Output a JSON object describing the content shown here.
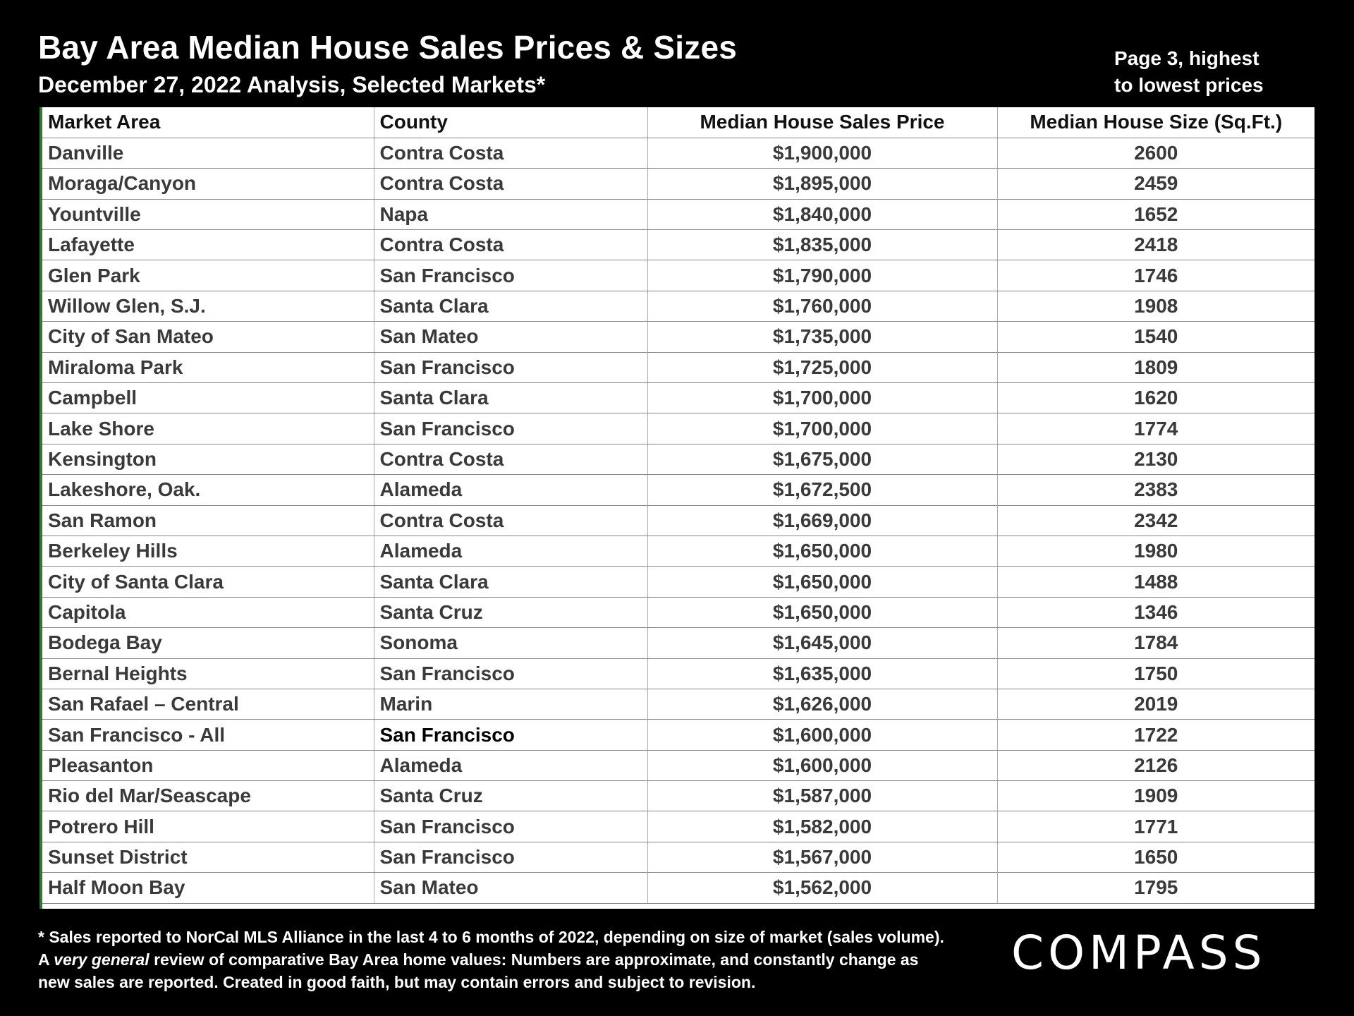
{
  "header": {
    "title": "Bay Area Median House Sales Prices & Sizes",
    "subtitle": "December 27, 2022 Analysis, Selected Markets*",
    "page_note_line1": "Page 3, highest",
    "page_note_line2": "to lowest prices"
  },
  "table": {
    "columns": [
      "Market Area",
      "County",
      "Median House Sales Price",
      "Median House Size (Sq.Ft.)"
    ],
    "rows": [
      {
        "area": "Danville",
        "county": "Contra Costa",
        "price": "$1,900,000",
        "size": "2600"
      },
      {
        "area": "Moraga/Canyon",
        "county": "Contra Costa",
        "price": "$1,895,000",
        "size": "2459"
      },
      {
        "area": "Yountville",
        "county": "Napa",
        "price": "$1,840,000",
        "size": "1652"
      },
      {
        "area": "Lafayette",
        "county": "Contra Costa",
        "price": "$1,835,000",
        "size": "2418"
      },
      {
        "area": "Glen Park",
        "county": "San Francisco",
        "price": "$1,790,000",
        "size": "1746"
      },
      {
        "area": "Willow Glen, S.J.",
        "county": "Santa Clara",
        "price": "$1,760,000",
        "size": "1908"
      },
      {
        "area": "City of San Mateo",
        "county": "San Mateo",
        "price": "$1,735,000",
        "size": "1540"
      },
      {
        "area": "Miraloma Park",
        "county": "San Francisco",
        "price": "$1,725,000",
        "size": "1809"
      },
      {
        "area": "Campbell",
        "county": "Santa Clara",
        "price": "$1,700,000",
        "size": "1620"
      },
      {
        "area": "Lake Shore",
        "county": "San Francisco",
        "price": "$1,700,000",
        "size": "1774"
      },
      {
        "area": "Kensington",
        "county": "Contra Costa",
        "price": "$1,675,000",
        "size": "2130"
      },
      {
        "area": "Lakeshore, Oak.",
        "county": "Alameda",
        "price": "$1,672,500",
        "size": "2383"
      },
      {
        "area": "San Ramon",
        "county": "Contra Costa",
        "price": "$1,669,000",
        "size": "2342"
      },
      {
        "area": "Berkeley Hills",
        "county": "Alameda",
        "price": "$1,650,000",
        "size": "1980"
      },
      {
        "area": "City of Santa Clara",
        "county": "Santa Clara",
        "price": "$1,650,000",
        "size": "1488"
      },
      {
        "area": "Capitola",
        "county": "Santa Cruz",
        "price": "$1,650,000",
        "size": "1346"
      },
      {
        "area": "Bodega Bay",
        "county": "Sonoma",
        "price": "$1,645,000",
        "size": "1784"
      },
      {
        "area": "Bernal Heights",
        "county": "San Francisco",
        "price": "$1,635,000",
        "size": "1750"
      },
      {
        "area": "San Rafael – Central",
        "county": "Marin",
        "price": "$1,626,000",
        "size": "2019"
      },
      {
        "area": "San Francisco - All",
        "county": "San Francisco",
        "price": "$1,600,000",
        "size": "1722",
        "county_emphasis": true
      },
      {
        "area": "Pleasanton",
        "county": "Alameda",
        "price": "$1,600,000",
        "size": "2126"
      },
      {
        "area": "Rio del Mar/Seascape",
        "county": "Santa Cruz",
        "price": "$1,587,000",
        "size": "1909"
      },
      {
        "area": "Potrero Hill",
        "county": "San Francisco",
        "price": "$1,582,000",
        "size": "1771"
      },
      {
        "area": "Sunset District",
        "county": "San Francisco",
        "price": "$1,567,000",
        "size": "1650"
      },
      {
        "area": "Half Moon Bay",
        "county": "San Mateo",
        "price": "$1,562,000",
        "size": "1795"
      }
    ]
  },
  "footnote": {
    "line1": "* Sales reported to NorCal MLS Alliance in the last 4 to 6 months of 2022, depending on size of market (sales volume).",
    "line2_prefix": "A ",
    "line2_emphasis": "very general",
    "line2_rest": " review of comparative Bay Area home values:  Numbers are approximate, and constantly change as",
    "line3": "new sales are reported. Created in good faith, but may contain errors and subject to revision."
  },
  "logo": {
    "text": "COMPASS"
  }
}
